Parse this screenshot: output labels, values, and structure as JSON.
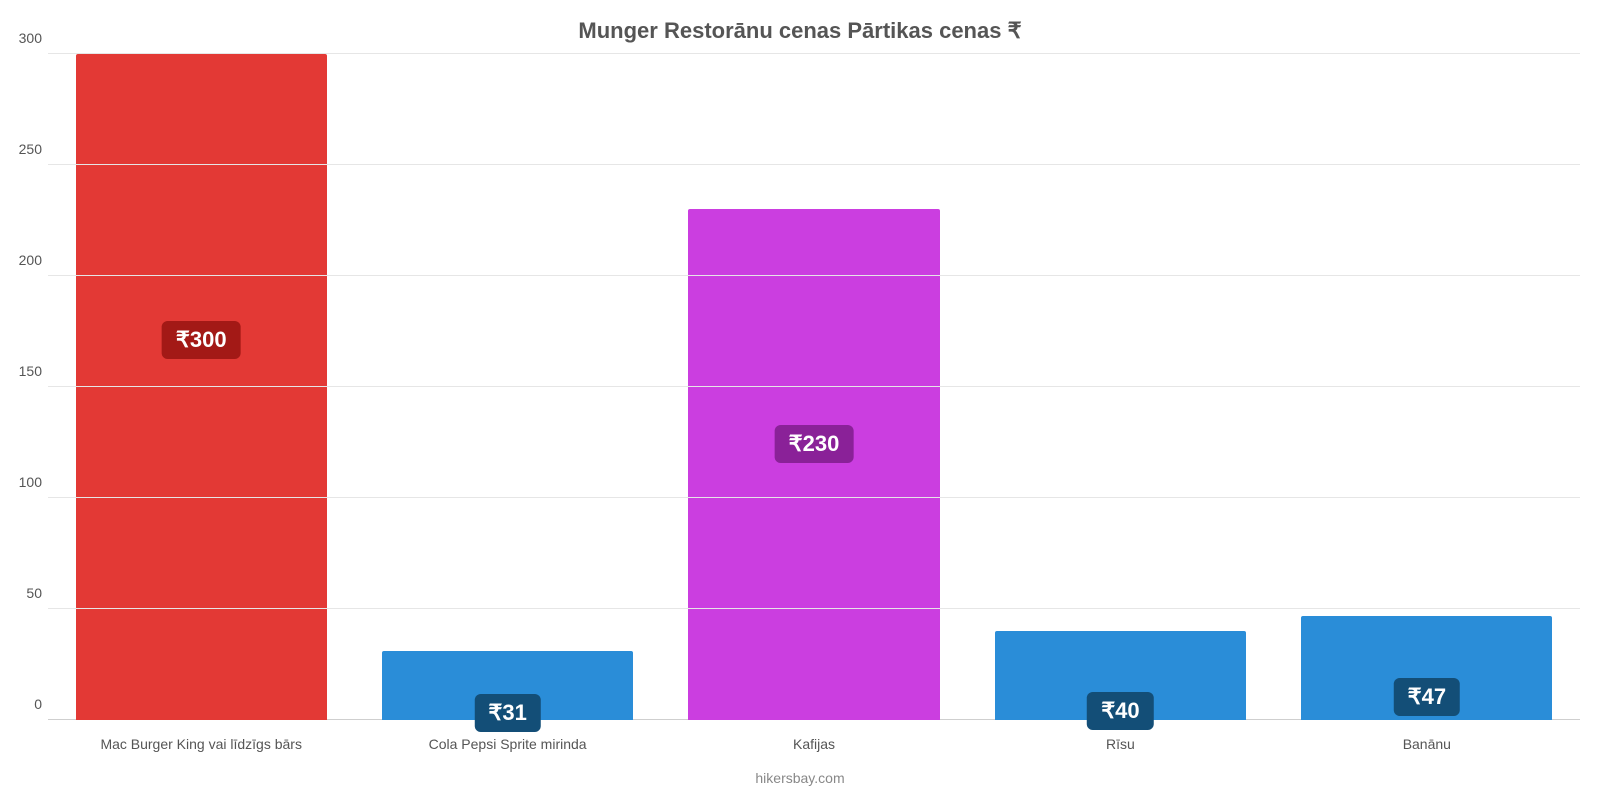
{
  "chart": {
    "type": "bar",
    "title": "Munger Restorānu cenas Pārtikas cenas ₹",
    "title_fontsize": 22,
    "title_color": "#555555",
    "footer": "hikersbay.com",
    "footer_color": "#888888",
    "background_color": "#ffffff",
    "grid_color": "#e6e6e6",
    "axis_color": "#cfcfcf",
    "tick_color": "#555555",
    "tick_fontsize": 14,
    "xlabel_fontsize": 14,
    "xlabel_color": "#555555",
    "ylim": [
      0,
      300
    ],
    "ytick_step": 50,
    "yticks": [
      0,
      50,
      100,
      150,
      200,
      250,
      300
    ],
    "bar_width_ratio": 0.82,
    "categories": [
      "Mac Burger King vai līdzīgs bārs",
      "Cola Pepsi Sprite mirinda",
      "Kafijas",
      "Rīsu",
      "Banānu"
    ],
    "values": [
      300,
      31,
      230,
      40,
      47
    ],
    "value_prefix": "₹",
    "value_labels": [
      "₹300",
      "₹31",
      "₹230",
      "₹40",
      "₹47"
    ],
    "bar_colors": [
      "#e33935",
      "#2a8dd8",
      "#cb3ee0",
      "#2a8dd8",
      "#2a8dd8"
    ],
    "badge_colors": [
      "#a31916",
      "#134e77",
      "#8a2198",
      "#134e77",
      "#134e77"
    ],
    "badge_fontsize": 22,
    "badge_text_color": "#ffffff",
    "value_badge_positions_pct": [
      43,
      90,
      46,
      90,
      78
    ]
  }
}
